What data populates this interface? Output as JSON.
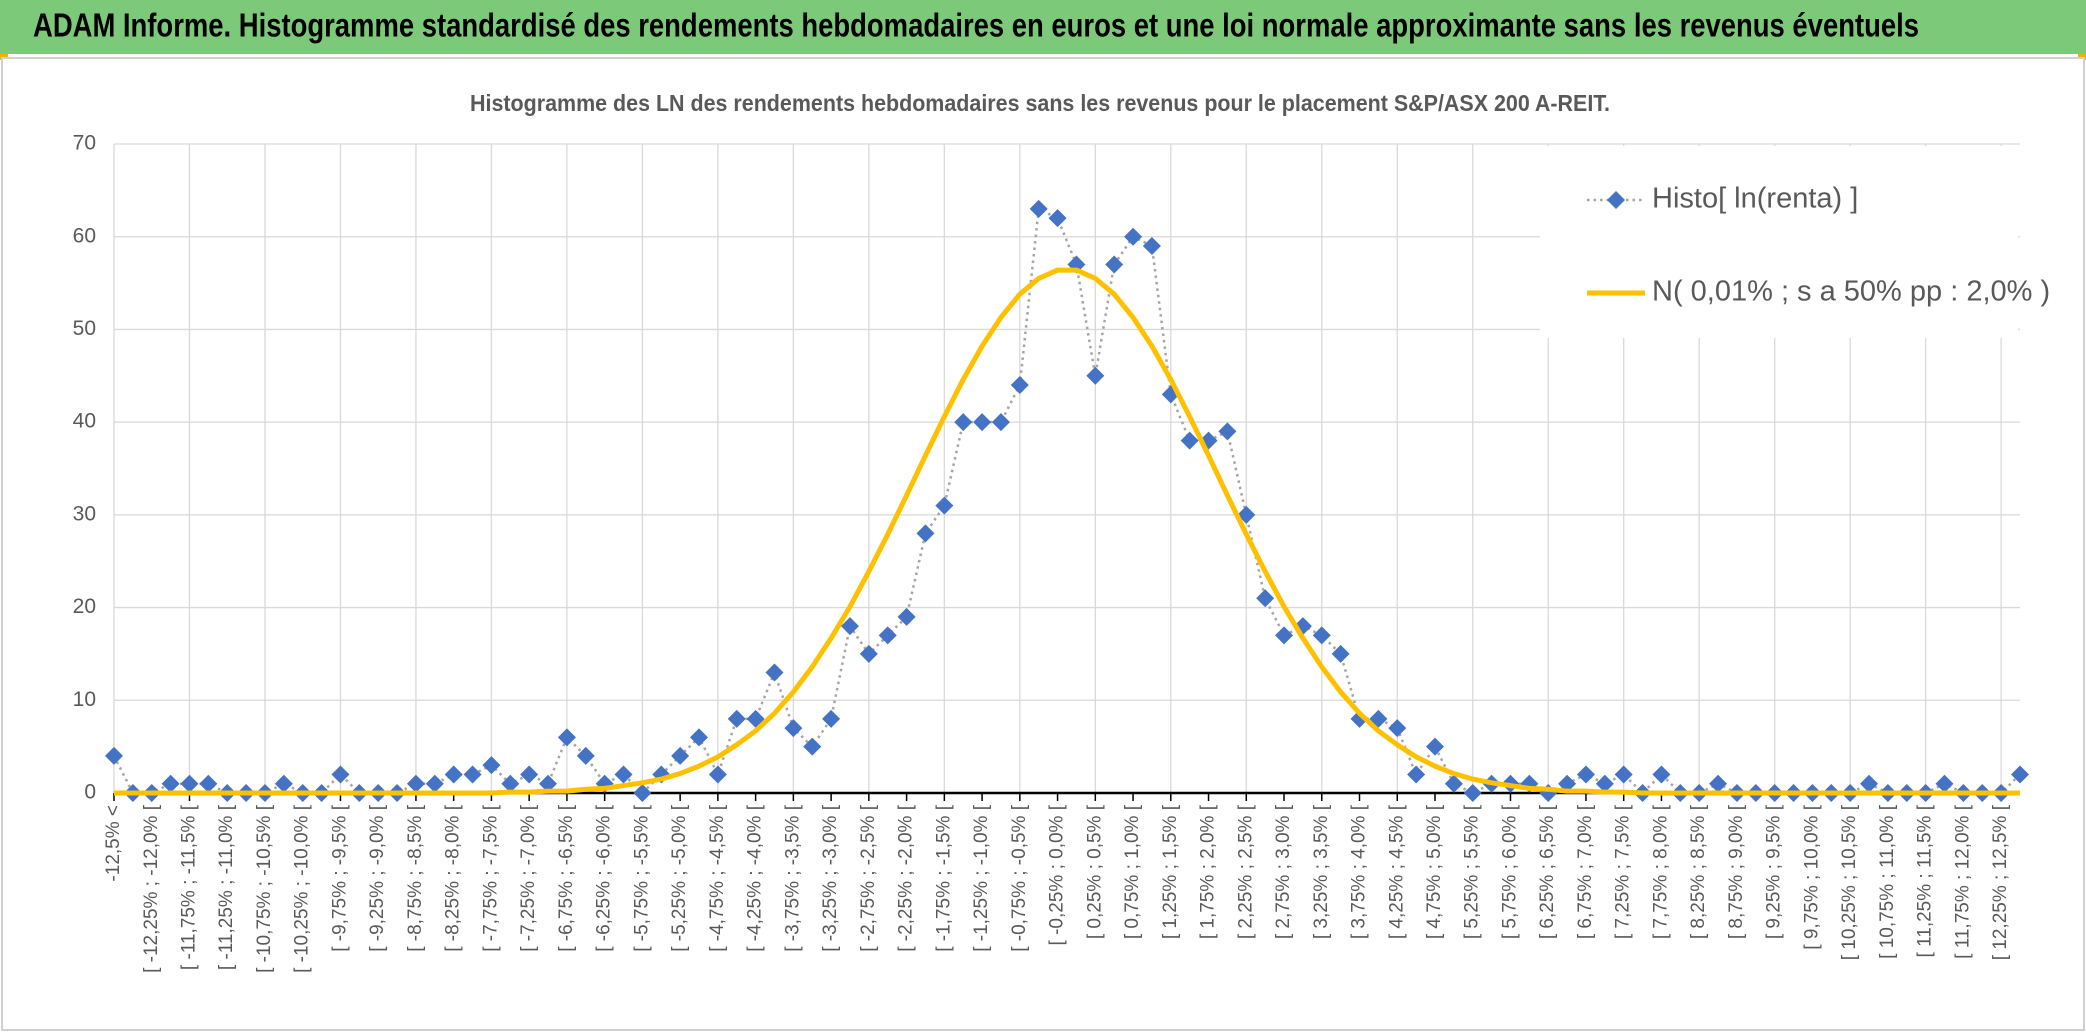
{
  "chart_data": {
    "type": "line",
    "title": "ADAM Informe. Histogramme standardisé des rendements hebdomadaires en euros et une loi normale approximante sans les revenus éventuels",
    "subtitle": "Histogramme des LN des rendements hebdomadaires sans les revenus pour le placement S&P/ASX 200 A-REIT.",
    "categories": [
      "-12,5% <",
      null,
      "[ -12,25% ; -12,0% [",
      null,
      "[ -11,75% ; -11,5% [",
      null,
      "[ -11,25% ; -11,0% [",
      null,
      "[ -10,75% ; -10,5% [",
      null,
      "[ -10,25% ; -10,0% [",
      null,
      "[ -9,75% ; -9,5% [",
      null,
      "[ -9,25% ; -9,0% [",
      null,
      "[ -8,75% ; -8,5% [",
      null,
      "[ -8,25% ; -8,0% [",
      null,
      "[ -7,75% ; -7,5% [",
      null,
      "[ -7,25% ; -7,0% [",
      null,
      "[ -6,75% ; -6,5% [",
      null,
      "[ -6,25% ; -6,0% [",
      null,
      "[ -5,75% ; -5,5% [",
      null,
      "[ -5,25% ; -5,0% [",
      null,
      "[ -4,75% ; -4,5% [",
      null,
      "[ -4,25% ; -4,0% [",
      null,
      "[ -3,75% ; -3,5% [",
      null,
      "[ -3,25% ; -3,0% [",
      null,
      "[ -2,75% ; -2,5% [",
      null,
      "[ -2,25% ; -2,0% [",
      null,
      "[ -1,75% ; -1,5% [",
      null,
      "[ -1,25% ; -1,0% [",
      null,
      "[ -0,75% ; -0,5% [",
      null,
      "[ -0,25% ; 0,0% [",
      null,
      "[ 0,25% ; 0,5% [",
      null,
      "[ 0,75% ; 1,0% [",
      null,
      "[ 1,25% ; 1,5% [",
      null,
      "[ 1,75% ; 2,0% [",
      null,
      "[ 2,25% ; 2,5% [",
      null,
      "[ 2,75% ; 3,0% [",
      null,
      "[ 3,25% ; 3,5% [",
      null,
      "[ 3,75% ; 4,0% [",
      null,
      "[ 4,25% ; 4,5% [",
      null,
      "[ 4,75% ; 5,0% [",
      null,
      "[ 5,25% ; 5,5% [",
      null,
      "[ 5,75% ; 6,0% [",
      null,
      "[ 6,25% ; 6,5% [",
      null,
      "[ 6,75% ; 7,0% [",
      null,
      "[ 7,25% ; 7,5% [",
      null,
      "[ 7,75% ; 8,0% [",
      null,
      "[ 8,25% ; 8,5% [",
      null,
      "[ 8,75% ; 9,0% [",
      null,
      "[ 9,25% ; 9,5% [",
      null,
      "[ 9,75% ; 10,0% [",
      null,
      "[ 10,25% ; 10,5% [",
      null,
      "[ 10,75% ; 11,0% [",
      null,
      "[ 11,25% ; 11,5% [",
      null,
      "[ 11,75% ; 12,0% [",
      null,
      "[ 12,25% ; 12,5% [",
      null
    ],
    "series": [
      {
        "name": "Histo[ ln(renta) ]",
        "color": "#4472c4",
        "line_color": "#a5a5a5",
        "line_style": "dotted",
        "marker": "diamond",
        "values": [
          4,
          0,
          0,
          1,
          1,
          1,
          0,
          0,
          0,
          1,
          0,
          0,
          2,
          0,
          0,
          0,
          1,
          1,
          2,
          2,
          3,
          1,
          2,
          1,
          6,
          4,
          1,
          2,
          0,
          2,
          4,
          6,
          2,
          8,
          8,
          13,
          7,
          5,
          8,
          18,
          15,
          17,
          19,
          28,
          31,
          40,
          40,
          40,
          44,
          63,
          62,
          57,
          45,
          57,
          60,
          59,
          43,
          38,
          38,
          39,
          30,
          21,
          17,
          18,
          17,
          15,
          8,
          8,
          7,
          2,
          5,
          1,
          0,
          1,
          1,
          1,
          0,
          1,
          2,
          1,
          2,
          0,
          2,
          0,
          0,
          1,
          0,
          0,
          0,
          0,
          0,
          0,
          0,
          1,
          0,
          0,
          0,
          1,
          0,
          0,
          0,
          2
        ]
      },
      {
        "name": "N( 0,01% ; s a 50% pp : 2,0% )",
        "color": "#ffc000",
        "line_style": "solid",
        "values": [
          0,
          0,
          0,
          0,
          0,
          0,
          0,
          0,
          0,
          0,
          0,
          0,
          0,
          0,
          0,
          0,
          0,
          0,
          0,
          0,
          0,
          0.1,
          0.1,
          0.2,
          0.2,
          0.4,
          0.5,
          0.8,
          1.1,
          1.5,
          2.1,
          2.9,
          3.9,
          5.2,
          6.7,
          8.6,
          10.9,
          13.6,
          16.7,
          20.1,
          23.9,
          27.9,
          32.1,
          36.4,
          40.6,
          44.6,
          48.2,
          51.3,
          53.8,
          55.5,
          56.4,
          56.4,
          55.5,
          53.8,
          51.3,
          48.2,
          44.6,
          40.6,
          36.4,
          32.1,
          27.9,
          23.9,
          20.1,
          16.7,
          13.6,
          10.9,
          8.6,
          6.7,
          5.2,
          3.9,
          2.9,
          2.1,
          1.5,
          1.1,
          0.8,
          0.5,
          0.4,
          0.2,
          0.2,
          0.1,
          0.1,
          0,
          0,
          0,
          0,
          0,
          0,
          0,
          0,
          0,
          0,
          0,
          0,
          0,
          0,
          0,
          0,
          0,
          0,
          0,
          0,
          0
        ]
      }
    ],
    "ylim": [
      0,
      70
    ],
    "yticks": [
      0,
      10,
      20,
      30,
      40,
      50,
      60,
      70
    ],
    "grid": true,
    "legend": "upper right"
  }
}
